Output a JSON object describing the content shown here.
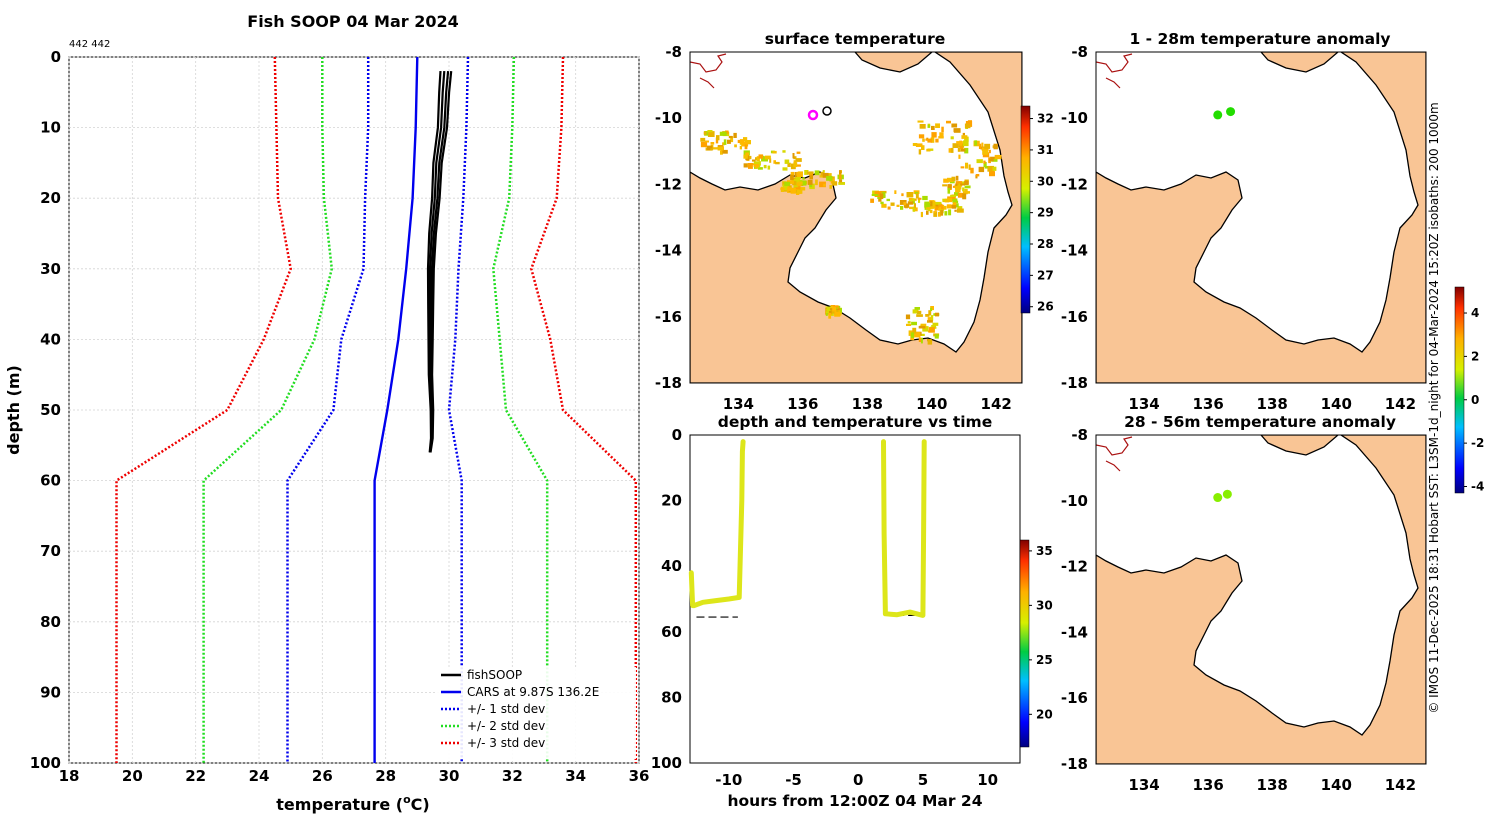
{
  "profile": {
    "title": "Fish SOOP 04 Mar 2024",
    "id_label": "442 442",
    "xlabel": "temperature (",
    "xlabel_sup": "o",
    "xlabel_end": "C)",
    "ylabel": "depth (m)",
    "xlim": [
      18,
      36
    ],
    "ylim": [
      0,
      100
    ],
    "xticks": [
      18,
      20,
      22,
      24,
      26,
      28,
      30,
      32,
      34,
      36
    ],
    "yticks": [
      0,
      10,
      20,
      30,
      40,
      50,
      60,
      70,
      80,
      90,
      100
    ],
    "legend": {
      "fish": "fishSOOP",
      "cars": "CARS at 9.87S 136.2E",
      "std1": "+/- 1 std dev",
      "std2": "+/- 2 std dev",
      "std3": "+/- 3 std dev"
    }
  },
  "chart_data": [
    {
      "type": "line",
      "title": "Fish SOOP 04 Mar 2024",
      "xlabel": "temperature (oC)",
      "ylabel": "depth (m)",
      "xlim": [
        18,
        36
      ],
      "ylim": [
        0,
        100
      ],
      "grid": true,
      "legend_position": "bottom-right",
      "depth": [
        0,
        10,
        20,
        30,
        40,
        50,
        60,
        100
      ],
      "series": [
        {
          "name": "CARS at 9.87S 136.2E",
          "color": "#0000ee",
          "temperature": [
            29.0,
            28.95,
            28.85,
            28.65,
            28.4,
            28.05,
            27.65,
            27.65
          ]
        },
        {
          "name": "+1 std dev",
          "color": "#0000ee",
          "temperature": [
            30.6,
            30.55,
            30.45,
            30.3,
            30.2,
            30.0,
            30.4,
            30.4
          ]
        },
        {
          "name": "-1 std dev",
          "color": "#0000ee",
          "temperature": [
            27.45,
            27.45,
            27.35,
            27.3,
            26.6,
            26.35,
            24.9,
            24.9
          ]
        },
        {
          "name": "+2 std dev",
          "color": "#22dd22",
          "temperature": [
            32.05,
            32.0,
            31.9,
            31.4,
            31.6,
            31.8,
            33.1,
            33.1
          ]
        },
        {
          "name": "-2 std dev",
          "color": "#22dd22",
          "temperature": [
            26.0,
            26.0,
            26.05,
            26.3,
            25.75,
            24.7,
            22.25,
            22.25
          ]
        },
        {
          "name": "+3 std dev",
          "color": "#ee0000",
          "temperature": [
            33.6,
            33.55,
            33.4,
            32.6,
            33.2,
            33.6,
            35.9,
            35.9
          ]
        },
        {
          "name": "-3 std dev",
          "color": "#ee0000",
          "temperature": [
            24.5,
            24.55,
            24.6,
            25.0,
            24.15,
            23.0,
            19.5,
            19.5
          ]
        },
        {
          "name": "fishSOOP",
          "color": "#000000",
          "depth": [
            2,
            5,
            10,
            15,
            20,
            25,
            30,
            35,
            40,
            45,
            50,
            54,
            56
          ],
          "temperature": [
            29.85,
            29.8,
            29.75,
            29.6,
            29.55,
            29.45,
            29.4,
            29.4,
            29.4,
            29.4,
            29.45,
            29.45,
            29.4
          ]
        }
      ]
    },
    {
      "type": "scatter",
      "title": "depth and temperature vs time",
      "xlabel": "hours from 12:00Z 04 Mar 24",
      "ylabel": "",
      "xlim": [
        -13,
        12.5
      ],
      "ylim": [
        0,
        100
      ],
      "xticks": [
        -10,
        -5,
        0,
        5,
        10
      ],
      "yticks": [
        0,
        20,
        40,
        60,
        80,
        100
      ],
      "colorbar": {
        "ticks": [
          20,
          25,
          30,
          35
        ],
        "range": [
          17,
          36
        ]
      },
      "tracks": [
        {
          "hours": [
            -12.9,
            -12.8,
            -12.7,
            -12.0,
            -11.0,
            -10.0,
            -9.2,
            -9.0,
            -8.95,
            -8.9
          ],
          "depth": [
            42,
            52,
            52,
            51,
            50.5,
            50,
            49.5,
            20,
            5,
            2
          ],
          "temperature": 29.8
        },
        {
          "hours": [
            1.95,
            2.0,
            2.1,
            3.0,
            4.0,
            5.0,
            5.05,
            5.1
          ],
          "depth": [
            2,
            30,
            54.5,
            54.8,
            54,
            55,
            30,
            2
          ],
          "temperature": 29.8
        }
      ],
      "bottom_depth_lines": [
        {
          "from": -12.5,
          "to": -9.3,
          "depth": 55.5
        },
        {
          "from": 2.0,
          "to": 5.0,
          "depth": 55.0
        }
      ]
    }
  ],
  "sst_map": {
    "title": "surface temperature",
    "xticks": [
      134,
      136,
      138,
      140,
      142
    ],
    "yticks": [
      -8,
      -10,
      -12,
      -14,
      -16,
      -18
    ],
    "xlim": [
      132.5,
      142.8
    ],
    "ylim": [
      -18,
      -8
    ],
    "colorbar": {
      "ticks": [
        26,
        27,
        28,
        29,
        30,
        31,
        32
      ],
      "range": [
        25.8,
        32.4
      ]
    },
    "ship_position": {
      "lon": 136.2,
      "lat": -9.87
    },
    "float_position": {
      "lon": 136.8,
      "lat": -9.75
    }
  },
  "anom1": {
    "title": "1 - 28m temperature anomaly",
    "xticks": [
      134,
      136,
      138,
      140,
      142
    ],
    "yticks": [
      -8,
      -10,
      -12,
      -14,
      -16,
      -18
    ],
    "points": [
      {
        "lon": 136.3,
        "lat": -9.9
      },
      {
        "lon": 136.7,
        "lat": -9.8
      }
    ],
    "colorbar": {
      "ticks": [
        -4,
        -2,
        0,
        2,
        4
      ],
      "range": [
        -4.3,
        5.2
      ]
    }
  },
  "anom2": {
    "title": "28 - 56m temperature anomaly",
    "xticks": [
      134,
      136,
      138,
      140,
      142
    ],
    "yticks": [
      -8,
      -10,
      -12,
      -14,
      -16,
      -18
    ],
    "points": [
      {
        "lon": 136.3,
        "lat": -9.9
      },
      {
        "lon": 136.6,
        "lat": -9.8
      }
    ]
  },
  "footer": {
    "credit": "© IMOS 11-Dec-2025 18:31 Hobart SST: L3SM-1d_night for 04-Mar-2024 15:20Z isobaths: 200  1000m"
  },
  "colors": {
    "land": "#f9c595",
    "coast": "#000000",
    "png_coast": "#aa1111",
    "track": "#dde61a",
    "std1": "#0000ee",
    "std2": "#22dd22",
    "std3": "#ee0000"
  }
}
